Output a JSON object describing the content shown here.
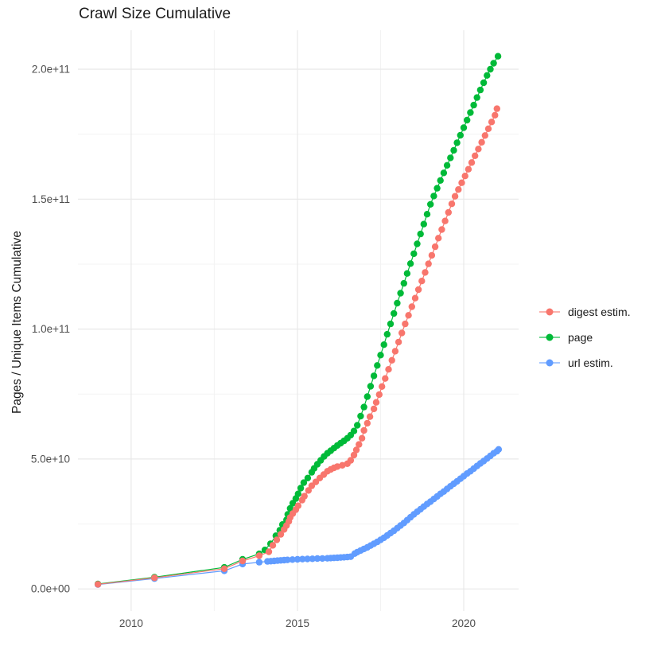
{
  "title": "Crawl Size Cumulative",
  "chart_data": {
    "type": "line",
    "title": "Crawl Size Cumulative",
    "xlabel": "",
    "ylabel": "Pages / Unique Items Cumulative",
    "value_unit": "billions (1e9) of pages / unique items",
    "x_domain": [
      2008.4,
      2021.65
    ],
    "y_domain": [
      -8.5,
      215
    ],
    "x_ticks": [
      {
        "value": 2010,
        "label": "2010"
      },
      {
        "value": 2015,
        "label": "2015"
      },
      {
        "value": 2020,
        "label": "2020"
      }
    ],
    "x_minor": [
      2012.5,
      2017.5
    ],
    "y_ticks": [
      {
        "value": 0,
        "label": "0.0e+00"
      },
      {
        "value": 50,
        "label": "5.0e+10"
      },
      {
        "value": 100,
        "label": "1.0e+11"
      },
      {
        "value": 150,
        "label": "1.5e+11"
      },
      {
        "value": 200,
        "label": "2.0e+11"
      }
    ],
    "y_minor": [
      25,
      75,
      125,
      175
    ],
    "grid": true,
    "legend_position": "right",
    "legend_order": [
      "digest estim.",
      "page",
      "url estim."
    ],
    "series": [
      {
        "name": "page",
        "color": "#00BA38",
        "points": [
          [
            2009.0,
            1.9
          ],
          [
            2010.7,
            4.5
          ],
          [
            2012.8,
            8.3
          ],
          [
            2013.35,
            11.4
          ],
          [
            2013.85,
            13.5
          ],
          [
            2014.02,
            15.0
          ],
          [
            2014.19,
            17.4
          ],
          [
            2014.35,
            20.5
          ],
          [
            2014.47,
            22.6
          ],
          [
            2014.55,
            24.8
          ],
          [
            2014.67,
            26.6
          ],
          [
            2014.71,
            28.7
          ],
          [
            2014.78,
            31.0
          ],
          [
            2014.86,
            33.0
          ],
          [
            2014.95,
            34.8
          ],
          [
            2015.02,
            36.6
          ],
          [
            2015.1,
            38.8
          ],
          [
            2015.19,
            40.9
          ],
          [
            2015.31,
            42.7
          ],
          [
            2015.43,
            44.9
          ],
          [
            2015.5,
            46.4
          ],
          [
            2015.6,
            48.0
          ],
          [
            2015.7,
            49.5
          ],
          [
            2015.8,
            51.0
          ],
          [
            2015.9,
            52.2
          ],
          [
            2016.0,
            53.2
          ],
          [
            2016.1,
            54.2
          ],
          [
            2016.2,
            55.2
          ],
          [
            2016.3,
            56.1
          ],
          [
            2016.4,
            57.0
          ],
          [
            2016.5,
            58.0
          ],
          [
            2016.6,
            59.2
          ],
          [
            2016.7,
            60.8
          ],
          [
            2016.8,
            63.0
          ],
          [
            2016.9,
            66.5
          ],
          [
            2017.0,
            70.0
          ],
          [
            2017.1,
            74.0
          ],
          [
            2017.2,
            78.0
          ],
          [
            2017.3,
            82.0
          ],
          [
            2017.4,
            86.0
          ],
          [
            2017.5,
            90.0
          ],
          [
            2017.6,
            94.0
          ],
          [
            2017.7,
            98.0
          ],
          [
            2017.8,
            102.0
          ],
          [
            2017.9,
            106.0
          ],
          [
            2018.0,
            110.0
          ],
          [
            2018.1,
            113.8
          ],
          [
            2018.2,
            117.6
          ],
          [
            2018.3,
            121.4
          ],
          [
            2018.4,
            125.2
          ],
          [
            2018.5,
            129.0
          ],
          [
            2018.6,
            132.8
          ],
          [
            2018.7,
            136.6
          ],
          [
            2018.8,
            140.4
          ],
          [
            2018.9,
            144.2
          ],
          [
            2019.0,
            148.0
          ],
          [
            2019.1,
            151.2
          ],
          [
            2019.2,
            154.2
          ],
          [
            2019.3,
            157.2
          ],
          [
            2019.4,
            160.1
          ],
          [
            2019.5,
            163.0
          ],
          [
            2019.6,
            165.9
          ],
          [
            2019.7,
            168.8
          ],
          [
            2019.8,
            171.7
          ],
          [
            2019.9,
            174.6
          ],
          [
            2020.0,
            177.5
          ],
          [
            2020.1,
            180.4
          ],
          [
            2020.2,
            183.3
          ],
          [
            2020.3,
            186.2
          ],
          [
            2020.4,
            189.1
          ],
          [
            2020.5,
            192.0
          ],
          [
            2020.6,
            194.8
          ],
          [
            2020.7,
            197.6
          ],
          [
            2020.8,
            200.0
          ],
          [
            2020.9,
            202.3
          ],
          [
            2021.03,
            205.0
          ]
        ]
      },
      {
        "name": "url estim.",
        "color": "#619CFF",
        "points": [
          [
            2009.0,
            1.7
          ],
          [
            2010.7,
            4.0
          ],
          [
            2012.8,
            7.0
          ],
          [
            2013.35,
            9.6
          ],
          [
            2013.85,
            10.3
          ],
          [
            2014.1,
            10.6
          ],
          [
            2014.2,
            10.7
          ],
          [
            2014.3,
            10.8
          ],
          [
            2014.4,
            10.9
          ],
          [
            2014.5,
            11.0
          ],
          [
            2014.6,
            11.1
          ],
          [
            2014.7,
            11.2
          ],
          [
            2014.85,
            11.3
          ],
          [
            2015.0,
            11.4
          ],
          [
            2015.15,
            11.5
          ],
          [
            2015.3,
            11.55
          ],
          [
            2015.45,
            11.6
          ],
          [
            2015.6,
            11.7
          ],
          [
            2015.75,
            11.75
          ],
          [
            2015.9,
            11.8
          ],
          [
            2016.0,
            11.9
          ],
          [
            2016.1,
            11.95
          ],
          [
            2016.2,
            12.0
          ],
          [
            2016.3,
            12.1
          ],
          [
            2016.4,
            12.2
          ],
          [
            2016.5,
            12.3
          ],
          [
            2016.6,
            12.4
          ],
          [
            2016.72,
            13.6
          ],
          [
            2016.8,
            14.2
          ],
          [
            2016.9,
            14.8
          ],
          [
            2017.0,
            15.4
          ],
          [
            2017.1,
            16.0
          ],
          [
            2017.2,
            16.7
          ],
          [
            2017.3,
            17.4
          ],
          [
            2017.4,
            18.1
          ],
          [
            2017.5,
            18.9
          ],
          [
            2017.6,
            19.7
          ],
          [
            2017.7,
            20.6
          ],
          [
            2017.8,
            21.5
          ],
          [
            2017.9,
            22.4
          ],
          [
            2018.0,
            23.4
          ],
          [
            2018.1,
            24.4
          ],
          [
            2018.2,
            25.4
          ],
          [
            2018.3,
            26.5
          ],
          [
            2018.4,
            27.6
          ],
          [
            2018.5,
            28.7
          ],
          [
            2018.6,
            29.7
          ],
          [
            2018.7,
            30.7
          ],
          [
            2018.8,
            31.7
          ],
          [
            2018.9,
            32.7
          ],
          [
            2019.0,
            33.6
          ],
          [
            2019.1,
            34.6
          ],
          [
            2019.2,
            35.6
          ],
          [
            2019.3,
            36.6
          ],
          [
            2019.4,
            37.5
          ],
          [
            2019.5,
            38.5
          ],
          [
            2019.6,
            39.5
          ],
          [
            2019.7,
            40.5
          ],
          [
            2019.8,
            41.4
          ],
          [
            2019.9,
            42.4
          ],
          [
            2020.0,
            43.4
          ],
          [
            2020.1,
            44.4
          ],
          [
            2020.2,
            45.3
          ],
          [
            2020.3,
            46.3
          ],
          [
            2020.4,
            47.3
          ],
          [
            2020.5,
            48.3
          ],
          [
            2020.6,
            49.2
          ],
          [
            2020.7,
            50.2
          ],
          [
            2020.8,
            51.2
          ],
          [
            2020.9,
            52.2
          ],
          [
            2021.0,
            53.0
          ],
          [
            2021.05,
            53.7
          ]
        ]
      },
      {
        "name": "digest estim.",
        "color": "#F8766D",
        "points": [
          [
            2009.0,
            1.8
          ],
          [
            2010.7,
            4.3
          ],
          [
            2012.8,
            7.8
          ],
          [
            2013.35,
            10.8
          ],
          [
            2013.85,
            12.8
          ],
          [
            2014.14,
            14.3
          ],
          [
            2014.26,
            16.8
          ],
          [
            2014.38,
            18.9
          ],
          [
            2014.5,
            21.0
          ],
          [
            2014.6,
            22.9
          ],
          [
            2014.67,
            24.4
          ],
          [
            2014.74,
            26.0
          ],
          [
            2014.78,
            27.5
          ],
          [
            2014.86,
            29.0
          ],
          [
            2014.95,
            30.5
          ],
          [
            2015.02,
            32.0
          ],
          [
            2015.14,
            34.2
          ],
          [
            2015.21,
            35.7
          ],
          [
            2015.33,
            37.9
          ],
          [
            2015.43,
            39.7
          ],
          [
            2015.55,
            41.2
          ],
          [
            2015.67,
            42.7
          ],
          [
            2015.79,
            44.0
          ],
          [
            2015.9,
            45.3
          ],
          [
            2016.0,
            46.0
          ],
          [
            2016.1,
            46.6
          ],
          [
            2016.2,
            47.1
          ],
          [
            2016.35,
            47.6
          ],
          [
            2016.5,
            48.2
          ],
          [
            2016.6,
            49.5
          ],
          [
            2016.7,
            51.5
          ],
          [
            2016.77,
            53.5
          ],
          [
            2016.85,
            55.6
          ],
          [
            2016.94,
            58.0
          ],
          [
            2017.0,
            61.0
          ],
          [
            2017.1,
            63.8
          ],
          [
            2017.18,
            66.3
          ],
          [
            2017.3,
            69.3
          ],
          [
            2017.37,
            71.8
          ],
          [
            2017.46,
            74.8
          ],
          [
            2017.54,
            77.9
          ],
          [
            2017.64,
            81.0
          ],
          [
            2017.74,
            84.5
          ],
          [
            2017.84,
            88.0
          ],
          [
            2017.94,
            91.5
          ],
          [
            2018.04,
            95.0
          ],
          [
            2018.14,
            98.5
          ],
          [
            2018.24,
            102.0
          ],
          [
            2018.34,
            105.3
          ],
          [
            2018.44,
            108.6
          ],
          [
            2018.54,
            111.9
          ],
          [
            2018.64,
            115.2
          ],
          [
            2018.74,
            118.5
          ],
          [
            2018.84,
            121.8
          ],
          [
            2018.94,
            125.1
          ],
          [
            2019.04,
            128.4
          ],
          [
            2019.14,
            131.7
          ],
          [
            2019.24,
            135.0
          ],
          [
            2019.34,
            138.3
          ],
          [
            2019.44,
            141.6
          ],
          [
            2019.54,
            144.9
          ],
          [
            2019.64,
            148.2
          ],
          [
            2019.74,
            151.1
          ],
          [
            2019.84,
            153.7
          ],
          [
            2019.94,
            156.3
          ],
          [
            2020.04,
            158.9
          ],
          [
            2020.14,
            161.5
          ],
          [
            2020.24,
            164.1
          ],
          [
            2020.34,
            166.7
          ],
          [
            2020.44,
            169.3
          ],
          [
            2020.54,
            171.9
          ],
          [
            2020.64,
            174.5
          ],
          [
            2020.74,
            177.1
          ],
          [
            2020.84,
            179.7
          ],
          [
            2020.94,
            182.3
          ],
          [
            2021.0,
            184.8
          ]
        ]
      }
    ],
    "colors": {
      "digest estim.": "#F8766D",
      "page": "#00BA38",
      "url estim.": "#619CFF",
      "grid_major": "#e8e8e8",
      "grid_minor": "#f3f3f3",
      "tick_text": "#4d4d4d"
    }
  }
}
